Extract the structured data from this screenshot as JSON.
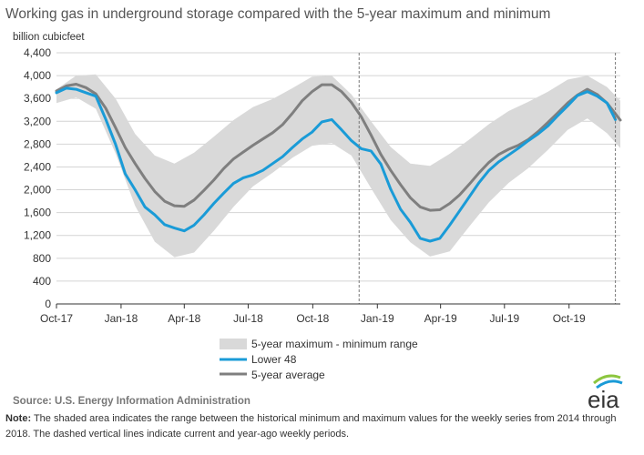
{
  "chart_data": {
    "type": "line",
    "title": "Working gas in underground  storage compared with the 5-year maximum and minimum",
    "ylabel": "billion cubicfeet",
    "xlabel": "",
    "ylim": [
      0,
      4400
    ],
    "yticks": [
      0,
      400,
      800,
      1200,
      1600,
      2000,
      2400,
      2800,
      3200,
      3600,
      4000,
      4400
    ],
    "ytick_labels": [
      "0",
      "400",
      "800",
      "1,200",
      "1,600",
      "2,000",
      "2,400",
      "2,800",
      "3,200",
      "3,600",
      "4,000",
      "4,400"
    ],
    "xlim": [
      "2017-10-01",
      "2019-12-13"
    ],
    "xticks": [
      "2017-10-01",
      "2018-01-01",
      "2018-04-01",
      "2018-07-01",
      "2018-10-01",
      "2019-01-01",
      "2019-04-01",
      "2019-07-01",
      "2019-10-01"
    ],
    "xtick_labels": [
      "Oct-17",
      "Jan-18",
      "Apr-18",
      "Jul-18",
      "Oct-18",
      "Jan-19",
      "Apr-19",
      "Jul-19",
      "Oct-19"
    ],
    "grid": "horizontal",
    "legend": "bottom-center",
    "band": {
      "name": "5-year maximum - minimum range",
      "color": "#d9d9d9",
      "x": [
        "2017-10-01",
        "2017-10-29",
        "2017-11-26",
        "2017-12-24",
        "2018-01-21",
        "2018-02-18",
        "2018-03-18",
        "2018-04-15",
        "2018-05-13",
        "2018-06-10",
        "2018-07-08",
        "2018-08-05",
        "2018-09-02",
        "2018-09-30",
        "2018-10-28",
        "2018-11-25",
        "2018-12-23",
        "2019-01-20",
        "2019-02-17",
        "2019-03-17",
        "2019-04-14",
        "2019-05-12",
        "2019-06-09",
        "2019-07-07",
        "2019-08-04",
        "2019-09-01",
        "2019-09-29",
        "2019-10-27",
        "2019-11-24",
        "2019-12-13"
      ],
      "upper": [
        3760,
        4000,
        4020,
        3600,
        2980,
        2600,
        2460,
        2650,
        2930,
        3220,
        3450,
        3590,
        3780,
        3980,
        4000,
        3670,
        3200,
        2750,
        2460,
        2420,
        2630,
        2880,
        3150,
        3380,
        3540,
        3720,
        3930,
        4000,
        3800,
        3560
      ],
      "lower": [
        3520,
        3620,
        3420,
        2640,
        1720,
        1090,
        820,
        900,
        1280,
        1700,
        2060,
        2300,
        2560,
        2770,
        2820,
        2600,
        2030,
        1470,
        1080,
        830,
        920,
        1360,
        1780,
        2120,
        2380,
        2700,
        3050,
        3250,
        2990,
        2730
      ]
    },
    "series": [
      {
        "name": "Lower 48",
        "color": "#1a9bd7",
        "x": [
          "2017-10-01",
          "2017-10-15",
          "2017-10-29",
          "2017-11-12",
          "2017-11-26",
          "2017-12-10",
          "2017-12-24",
          "2018-01-07",
          "2018-01-21",
          "2018-02-04",
          "2018-02-18",
          "2018-03-04",
          "2018-03-18",
          "2018-04-01",
          "2018-04-15",
          "2018-04-29",
          "2018-05-13",
          "2018-05-27",
          "2018-06-10",
          "2018-06-24",
          "2018-07-08",
          "2018-07-22",
          "2018-08-05",
          "2018-08-19",
          "2018-09-02",
          "2018-09-16",
          "2018-09-30",
          "2018-10-14",
          "2018-10-28",
          "2018-11-11",
          "2018-11-25",
          "2018-12-09",
          "2018-12-23",
          "2019-01-06",
          "2019-01-20",
          "2019-02-03",
          "2019-02-17",
          "2019-03-03",
          "2019-03-17",
          "2019-03-31",
          "2019-04-14",
          "2019-04-28",
          "2019-05-12",
          "2019-05-26",
          "2019-06-09",
          "2019-06-23",
          "2019-07-07",
          "2019-07-21",
          "2019-08-04",
          "2019-08-18",
          "2019-09-01",
          "2019-09-15",
          "2019-09-29",
          "2019-10-13",
          "2019-10-27",
          "2019-11-10",
          "2019-11-24",
          "2019-12-06"
        ],
        "values": [
          3700,
          3780,
          3760,
          3700,
          3640,
          3240,
          2800,
          2280,
          2000,
          1700,
          1560,
          1390,
          1330,
          1280,
          1380,
          1560,
          1760,
          1940,
          2110,
          2210,
          2260,
          2340,
          2460,
          2580,
          2740,
          2890,
          3010,
          3190,
          3230,
          3050,
          2860,
          2720,
          2680,
          2450,
          2010,
          1660,
          1430,
          1150,
          1100,
          1150,
          1380,
          1630,
          1880,
          2130,
          2340,
          2490,
          2610,
          2730,
          2860,
          2980,
          3120,
          3300,
          3470,
          3650,
          3720,
          3640,
          3520,
          3230
        ]
      },
      {
        "name": "5-year average",
        "color": "#7f7f7f",
        "x": [
          "2017-10-01",
          "2017-10-15",
          "2017-10-29",
          "2017-11-12",
          "2017-11-26",
          "2017-12-10",
          "2017-12-24",
          "2018-01-07",
          "2018-01-21",
          "2018-02-04",
          "2018-02-18",
          "2018-03-04",
          "2018-03-18",
          "2018-04-01",
          "2018-04-15",
          "2018-04-29",
          "2018-05-13",
          "2018-05-27",
          "2018-06-10",
          "2018-06-24",
          "2018-07-08",
          "2018-07-22",
          "2018-08-05",
          "2018-08-19",
          "2018-09-02",
          "2018-09-16",
          "2018-09-30",
          "2018-10-14",
          "2018-10-28",
          "2018-11-11",
          "2018-11-25",
          "2018-12-09",
          "2018-12-23",
          "2019-01-06",
          "2019-01-20",
          "2019-02-03",
          "2019-02-17",
          "2019-03-03",
          "2019-03-17",
          "2019-03-31",
          "2019-04-14",
          "2019-04-28",
          "2019-05-12",
          "2019-05-26",
          "2019-06-09",
          "2019-06-23",
          "2019-07-07",
          "2019-07-21",
          "2019-08-04",
          "2019-08-18",
          "2019-09-01",
          "2019-09-15",
          "2019-09-29",
          "2019-10-13",
          "2019-10-27",
          "2019-11-10",
          "2019-11-24",
          "2019-12-13"
        ],
        "values": [
          3730,
          3820,
          3850,
          3790,
          3680,
          3430,
          3090,
          2740,
          2460,
          2200,
          1970,
          1800,
          1720,
          1710,
          1820,
          1990,
          2170,
          2370,
          2540,
          2660,
          2780,
          2890,
          3000,
          3140,
          3340,
          3560,
          3720,
          3840,
          3840,
          3720,
          3530,
          3280,
          2960,
          2620,
          2340,
          2090,
          1860,
          1700,
          1640,
          1650,
          1760,
          1910,
          2100,
          2300,
          2480,
          2620,
          2710,
          2780,
          2880,
          3020,
          3180,
          3350,
          3520,
          3660,
          3760,
          3670,
          3520,
          3220
        ]
      }
    ],
    "reference_lines": [
      "2018-12-06",
      "2019-12-06"
    ],
    "legend_entries": [
      "5-year maximum - minimum range",
      "Lower 48",
      "5-year average"
    ]
  },
  "footer": {
    "source": "Source:  U.S. Energy Information Administration",
    "note_label": "Note:",
    "note_text": " The shaded area indicates the range between the historical minimum and maximum values for the weekly series from 2014 through 2018. The dashed vertical lines indicate current and year-ago weekly periods."
  },
  "logo": {
    "text": "eia",
    "colors": [
      "#8cc63f",
      "#1a9bd7"
    ]
  }
}
